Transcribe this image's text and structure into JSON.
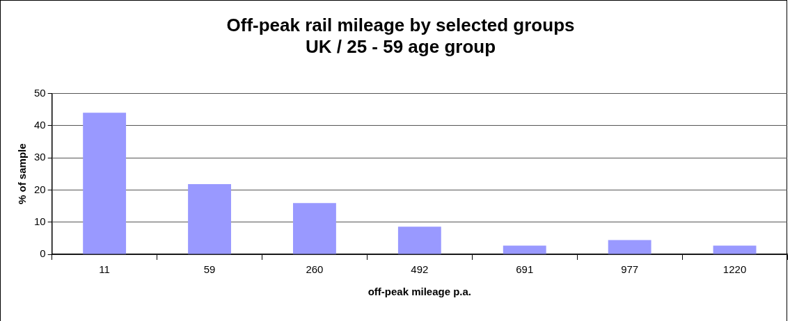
{
  "chart_data": {
    "type": "bar",
    "title": "Off-peak rail mileage by selected groups\nUK / 25 - 59 age group",
    "xlabel": "off-peak mileage p.a.",
    "ylabel": "% of sample",
    "categories": [
      "11",
      "59",
      "260",
      "492",
      "691",
      "977",
      "1220"
    ],
    "values": [
      44,
      21.8,
      15.9,
      8.6,
      2.7,
      4.4,
      2.7
    ],
    "color": "#9999ff",
    "ylim": [
      0,
      50
    ],
    "yticks": [
      0,
      10,
      20,
      30,
      40,
      50
    ],
    "grid": "y",
    "legend": false
  }
}
